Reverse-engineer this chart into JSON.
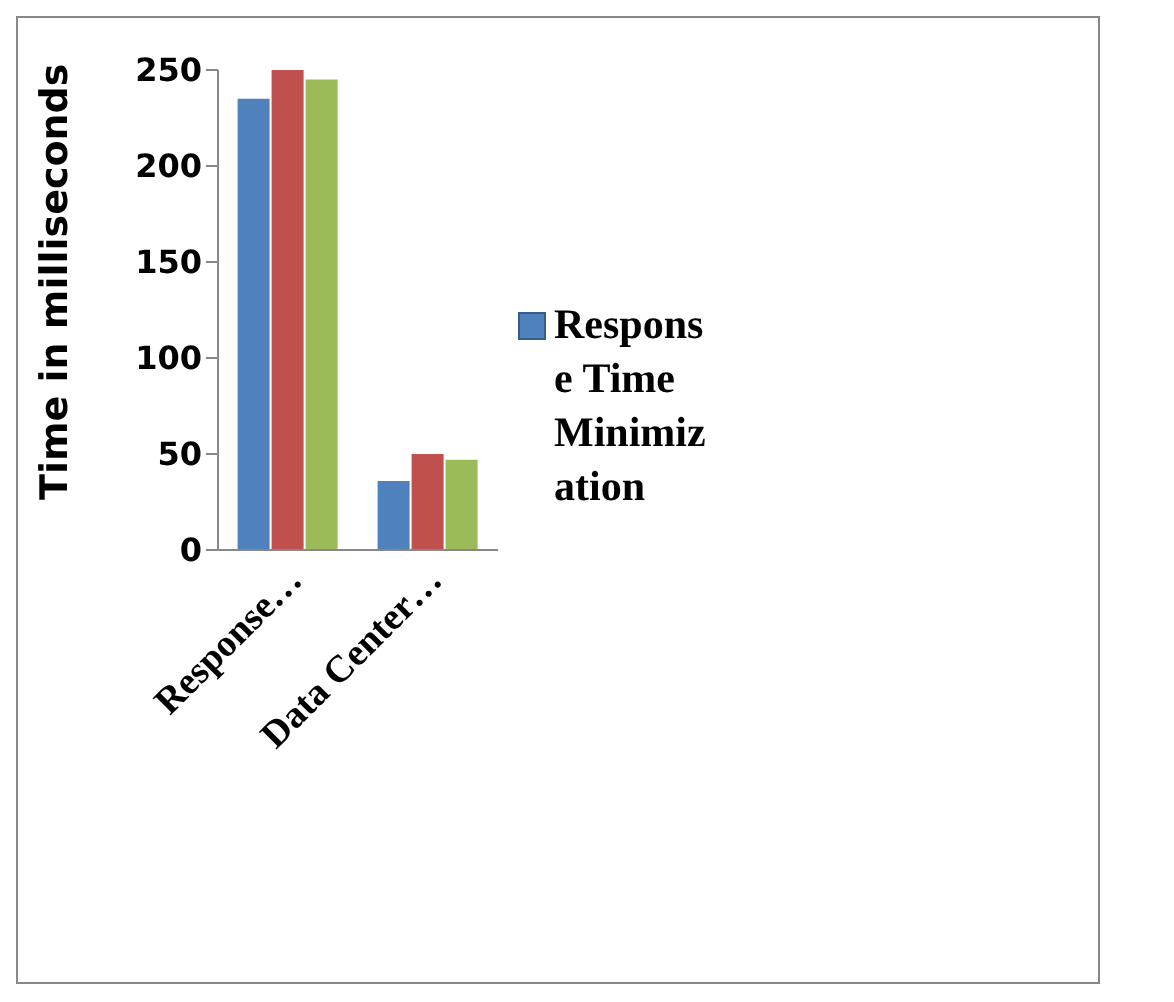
{
  "chart_data": {
    "type": "bar",
    "ylabel": "Time in milliseconds",
    "categories": [
      "Response…",
      "Data Center…"
    ],
    "series": [
      {
        "name": "Response Time Minimization",
        "color": "#4f81bd",
        "values": [
          235,
          36
        ]
      },
      {
        "color": "#c0504d",
        "values": [
          250,
          50
        ]
      },
      {
        "color": "#9bbb59",
        "values": [
          245,
          47
        ]
      }
    ],
    "ylim": [
      0,
      250
    ],
    "yticks": [
      0,
      50,
      100,
      150,
      200,
      250
    ],
    "grid": false,
    "legend": "right"
  }
}
